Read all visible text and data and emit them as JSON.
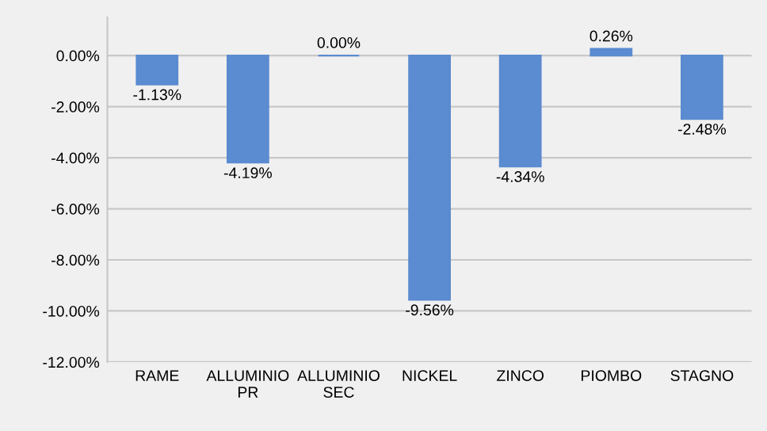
{
  "chart_data": {
    "type": "bar",
    "categories": [
      "RAME",
      "ALLUMINIO PR",
      "ALLUMINIO SEC",
      "NICKEL",
      "ZINCO",
      "PIOMBO",
      "STAGNO"
    ],
    "values": [
      -1.13,
      -4.19,
      0.0,
      -9.56,
      -4.34,
      0.26,
      -2.48
    ],
    "value_labels": [
      "-1.13%",
      "-4.19%",
      "0.00%",
      "-9.56%",
      "-4.34%",
      "0.26%",
      "-2.48%"
    ],
    "color": "#5b8bd0",
    "ylim": [
      -12,
      1.5
    ],
    "yticks": [
      {
        "value": 0,
        "label": "0.00%"
      },
      {
        "value": -2,
        "label": "-2.00%"
      },
      {
        "value": -4,
        "label": "-4.00%"
      },
      {
        "value": -6,
        "label": "-6.00%"
      },
      {
        "value": -8,
        "label": "-8.00%"
      },
      {
        "value": -10,
        "label": "-10.00%"
      },
      {
        "value": -12,
        "label": "-12.00%"
      }
    ],
    "grid": "y"
  }
}
